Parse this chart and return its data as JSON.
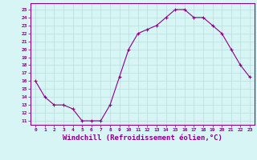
{
  "x": [
    0,
    1,
    2,
    3,
    4,
    5,
    6,
    7,
    8,
    9,
    10,
    11,
    12,
    13,
    14,
    15,
    16,
    17,
    18,
    19,
    20,
    21,
    22,
    23
  ],
  "y": [
    16.0,
    14.0,
    13.0,
    13.0,
    12.5,
    11.0,
    11.0,
    11.0,
    13.0,
    16.5,
    20.0,
    22.0,
    22.5,
    23.0,
    24.0,
    25.0,
    25.0,
    24.0,
    24.0,
    23.0,
    22.0,
    20.0,
    18.0,
    16.5
  ],
  "line_color": "#880088",
  "marker": "+",
  "marker_size": 3,
  "xlabel": "Windchill (Refroidissement éolien,°C)",
  "xlabel_fontsize": 6.5,
  "ylabel_ticks": [
    11,
    12,
    13,
    14,
    15,
    16,
    17,
    18,
    19,
    20,
    21,
    22,
    23,
    24,
    25
  ],
  "xlim": [
    -0.5,
    23.5
  ],
  "ylim": [
    10.5,
    25.8
  ],
  "background_color": "#d8f5f5",
  "grid_color": "#b8dede",
  "tick_color": "#880088",
  "tick_label_color": "#880088"
}
